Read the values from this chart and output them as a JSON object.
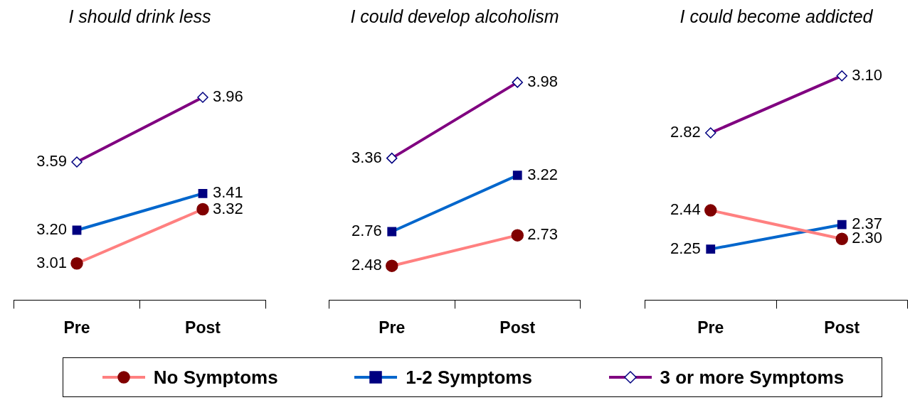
{
  "chart_data": [
    {
      "type": "line",
      "title": "I should drink less",
      "categories": [
        "Pre",
        "Post"
      ],
      "legend": "bottom",
      "tick_labels": "x",
      "series": [
        {
          "name": "No Symptoms",
          "color": "#ff8080",
          "marker": "circle",
          "values": [
            3.01,
            3.32
          ],
          "value_labels": [
            "3.01",
            "3.32"
          ]
        },
        {
          "name": "1-2 Symptoms",
          "color": "#0066cc",
          "marker": "square",
          "values": [
            3.2,
            3.41
          ],
          "value_labels": [
            "3.20",
            "3.41"
          ]
        },
        {
          "name": "3 or more Symptoms",
          "color": "#800080",
          "marker": "diamond",
          "values": [
            3.59,
            3.96
          ],
          "value_labels": [
            "3.59",
            "3.96"
          ]
        }
      ]
    },
    {
      "type": "line",
      "title": "I could develop alcoholism",
      "categories": [
        "Pre",
        "Post"
      ],
      "tick_labels": "x",
      "series": [
        {
          "color": "#ff8080",
          "marker": "circle",
          "values": [
            2.48,
            2.73
          ],
          "value_labels": [
            "2.48",
            "2.73"
          ]
        },
        {
          "color": "#0066cc",
          "marker": "square",
          "values": [
            2.76,
            3.22
          ],
          "value_labels": [
            "2.76",
            "3.22"
          ]
        },
        {
          "color": "#800080",
          "marker": "diamond",
          "values": [
            3.36,
            3.98
          ],
          "value_labels": [
            "3.36",
            "3.98"
          ]
        }
      ]
    },
    {
      "type": "line",
      "title": "I could become addicted",
      "categories": [
        "Pre",
        "Post"
      ],
      "tick_labels": "x",
      "series": [
        {
          "color": "#ff8080",
          "marker": "circle",
          "values": [
            2.44,
            2.3
          ],
          "value_labels": [
            "2.44",
            "2.30"
          ]
        },
        {
          "color": "#0066cc",
          "marker": "square",
          "values": [
            2.25,
            2.37
          ],
          "value_labels": [
            "2.25",
            "2.37"
          ]
        },
        {
          "color": "#800080",
          "marker": "diamond",
          "values": [
            2.82,
            3.1
          ],
          "value_labels": [
            "2.82",
            "3.10"
          ]
        }
      ]
    }
  ]
}
